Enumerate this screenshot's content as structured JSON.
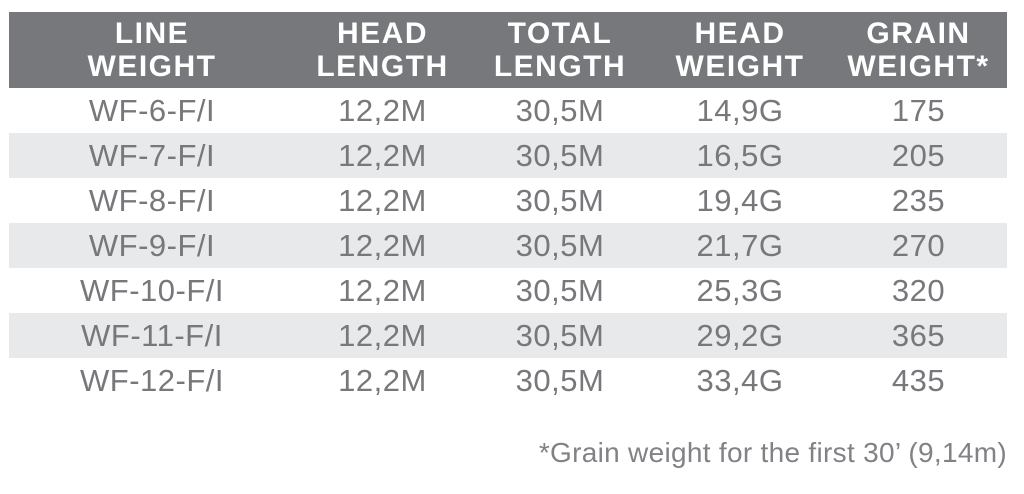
{
  "colors": {
    "header_bg": "#77787B",
    "header_text": "#FFFFFF",
    "row_text": "#77787B",
    "stripe_bg": "#E8E9EB",
    "footnote_text": "#818285",
    "page_bg": "#FFFFFF"
  },
  "chart_data": {
    "type": "table",
    "columns": [
      "LINE WEIGHT",
      "HEAD LENGTH",
      "TOTAL LENGTH",
      "HEAD WEIGHT",
      "GRAIN WEIGHT*"
    ],
    "header_lines": [
      [
        "LINE",
        "WEIGHT"
      ],
      [
        "HEAD",
        "LENGTH"
      ],
      [
        "TOTAL",
        "LENGTH"
      ],
      [
        "HEAD",
        "WEIGHT"
      ],
      [
        "GRAIN",
        "WEIGHT*"
      ]
    ],
    "rows": [
      [
        "WF-6-F/I",
        "12,2M",
        "30,5M",
        "14,9G",
        "175"
      ],
      [
        "WF-7-F/I",
        "12,2M",
        "30,5M",
        "16,5G",
        "205"
      ],
      [
        "WF-8-F/I",
        "12,2M",
        "30,5M",
        "19,4G",
        "235"
      ],
      [
        "WF-9-F/I",
        "12,2M",
        "30,5M",
        "21,7G",
        "270"
      ],
      [
        "WF-10-F/I",
        "12,2M",
        "30,5M",
        "25,3G",
        "320"
      ],
      [
        "WF-11-F/I",
        "12,2M",
        "30,5M",
        "29,2G",
        "365"
      ],
      [
        "WF-12-F/I",
        "12,2M",
        "30,5M",
        "33,4G",
        "435"
      ]
    ],
    "footnote": "*Grain weight for the first 30’ (9,14m)",
    "layout": {
      "striped_row_indices": [
        1,
        3,
        5
      ],
      "grid": "off",
      "header_position": "top"
    }
  }
}
